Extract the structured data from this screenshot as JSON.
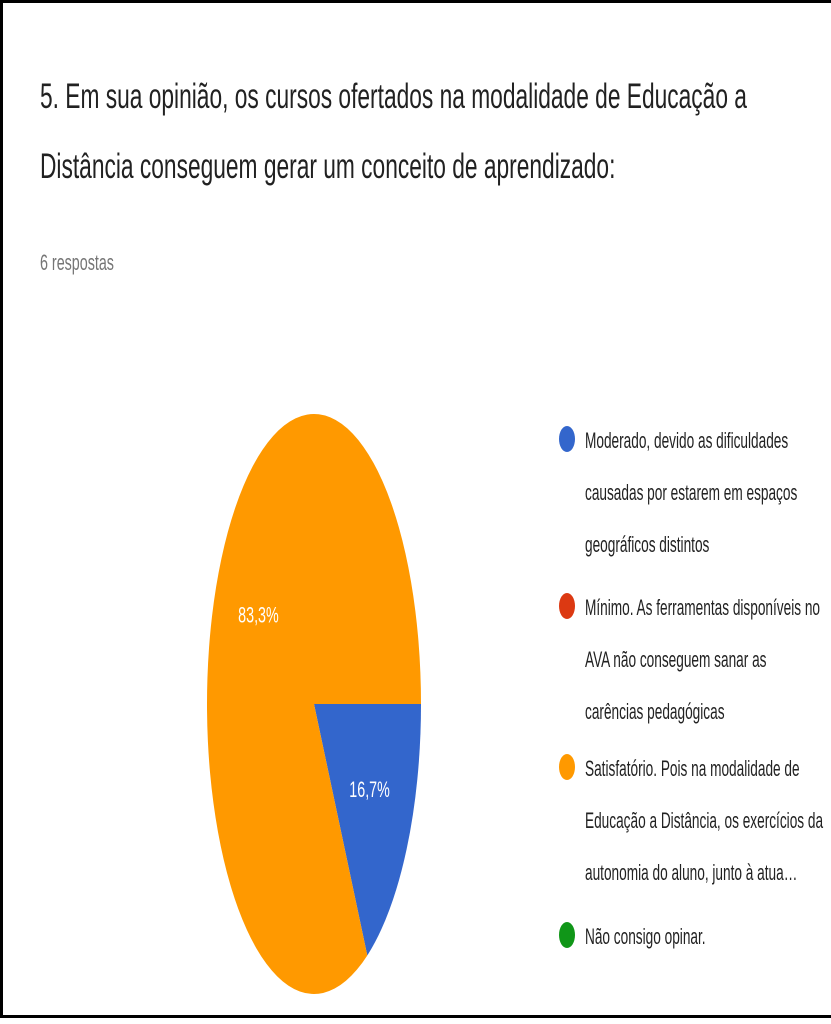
{
  "chart_data": {
    "type": "pie",
    "title": "5. Em sua opinião, os cursos ofertados na modalidade de Educação a Distância conseguem gerar um conceito de aprendizado:",
    "subtitle": "6 respostas",
    "categories": [
      "Moderado, devido as dificuldades causadas por estarem em espaços geográficos distintos",
      "Mínimo. As ferramentas disponíveis no AVA não conseguem sanar as carências pedagógicas",
      "Satisfatório. Pois na modalidade de Educação a Distância, os exercícios da autonomia do aluno, junto à atua…",
      "Não consigo opinar."
    ],
    "values": [
      16.7,
      0,
      83.3,
      0
    ],
    "value_labels": [
      "16,7%",
      null,
      "83,3%",
      null
    ],
    "colors": [
      "#3366cc",
      "#dc3912",
      "#ff9900",
      "#109618"
    ]
  }
}
